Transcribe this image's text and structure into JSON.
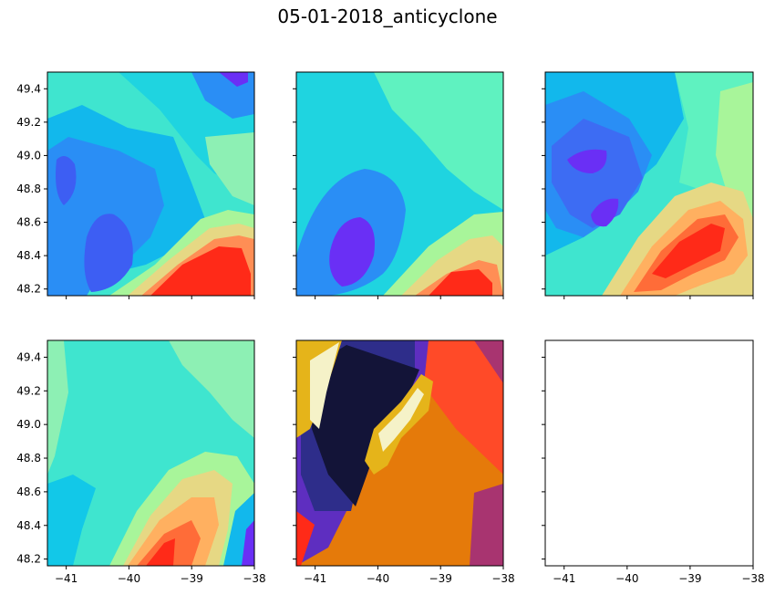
{
  "title": "05-01-2018_anticyclone",
  "chart_data": {
    "type": "contourf",
    "grid": {
      "rows": 2,
      "cols": 3,
      "sharex": true,
      "sharey": true
    },
    "xlim": [
      -41.3,
      -38
    ],
    "ylim": [
      48.16,
      49.5
    ],
    "xticks": [
      -41,
      -40,
      -39,
      -38
    ],
    "xtick_labels": [
      "−41",
      "−40",
      "−39",
      "−38"
    ],
    "yticks": [
      48.2,
      48.4,
      48.6,
      48.8,
      49.0,
      49.2,
      49.4
    ],
    "ytick_labels": [
      "48.2",
      "48.4",
      "48.6",
      "48.8",
      "49.0",
      "49.2",
      "49.4"
    ],
    "x_tick_labels_shown_on_row": 2,
    "y_tick_labels_shown_on_col": 1,
    "panels": [
      {
        "row": 1,
        "col": 1,
        "colormap": "rainbow",
        "levels": 8,
        "features": [
          {
            "kind": "high",
            "x": -38.7,
            "y": 48.25,
            "label": "max"
          },
          {
            "kind": "low",
            "x": -40.3,
            "y": 48.45,
            "label": "min"
          },
          {
            "kind": "low",
            "x": -41.1,
            "y": 48.85,
            "label": "min"
          },
          {
            "kind": "low",
            "x": -38.3,
            "y": 49.45,
            "label": "min"
          }
        ]
      },
      {
        "row": 1,
        "col": 2,
        "colormap": "rainbow",
        "levels": 7,
        "features": [
          {
            "kind": "high",
            "x": -38.7,
            "y": 48.22,
            "label": "max"
          },
          {
            "kind": "low",
            "x": -40.3,
            "y": 48.45,
            "label": "min"
          }
        ]
      },
      {
        "row": 1,
        "col": 3,
        "colormap": "rainbow",
        "levels": 9,
        "features": [
          {
            "kind": "high",
            "x": -38.9,
            "y": 48.4,
            "label": "max"
          },
          {
            "kind": "low",
            "x": -40.3,
            "y": 48.97,
            "label": "min"
          },
          {
            "kind": "low",
            "x": -40.1,
            "y": 48.65,
            "label": "min"
          }
        ]
      },
      {
        "row": 2,
        "col": 1,
        "colormap": "rainbow",
        "levels": 8,
        "features": [
          {
            "kind": "high",
            "x": -39.6,
            "y": 48.22,
            "label": "max"
          },
          {
            "kind": "low",
            "x": -38.1,
            "y": 48.3,
            "label": "min"
          }
        ]
      },
      {
        "row": 2,
        "col": 2,
        "colormap": "CMRmap",
        "levels": 9,
        "features": [
          {
            "kind": "low",
            "x": -40.5,
            "y": 49.0,
            "label": "min"
          },
          {
            "kind": "high",
            "x": -39.7,
            "y": 48.95,
            "label": "max"
          },
          {
            "kind": "high",
            "x": -40.9,
            "y": 49.1,
            "label": "max"
          }
        ]
      },
      {
        "row": 2,
        "col": 3,
        "colormap": "none",
        "levels": 0,
        "features": []
      }
    ]
  }
}
